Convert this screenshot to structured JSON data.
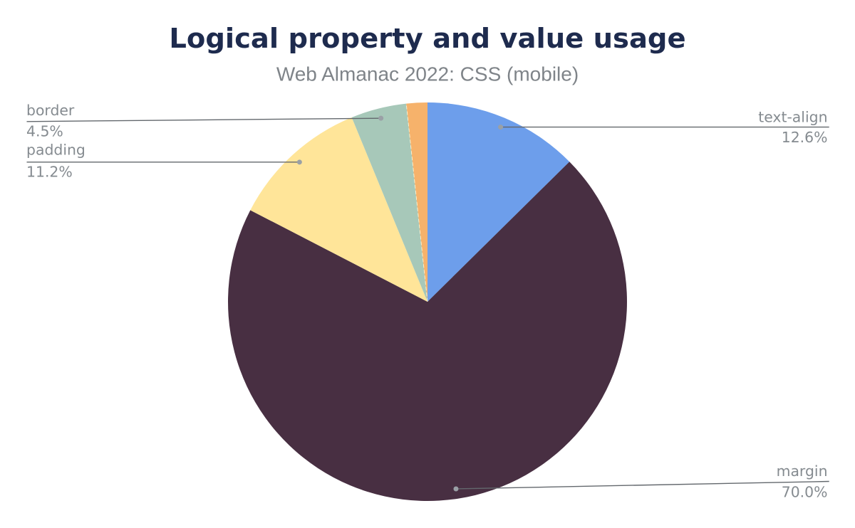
{
  "chart_data": {
    "type": "pie",
    "title": "Logical property and value usage",
    "subtitle": "Web Almanac 2022: CSS (mobile)",
    "unit": "percent",
    "rotation": "clockwise-from-top",
    "legend": "none",
    "slices": [
      {
        "label": "text-align",
        "value": 12.6,
        "display": "12.6%",
        "color": "#6d9eeb",
        "callout": "right"
      },
      {
        "label": "margin",
        "value": 70.0,
        "display": "70.0%",
        "color": "#482f42",
        "callout": "right"
      },
      {
        "label": "padding",
        "value": 11.2,
        "display": "11.2%",
        "color": "#ffe599",
        "callout": "left"
      },
      {
        "label": "border",
        "value": 4.5,
        "display": "4.5%",
        "color": "#a7c8b9",
        "callout": "left"
      },
      {
        "label": "",
        "value": 1.7,
        "display": "",
        "color": "#f6b26b",
        "callout": "none"
      }
    ],
    "style": {
      "title_color": "#1e2b4e",
      "subtitle_color": "#7f8489",
      "label_color": "#858b90",
      "leader_line_color": "#63686d",
      "leader_dot_color": "#9aa0a6",
      "background": "#ffffff"
    }
  }
}
